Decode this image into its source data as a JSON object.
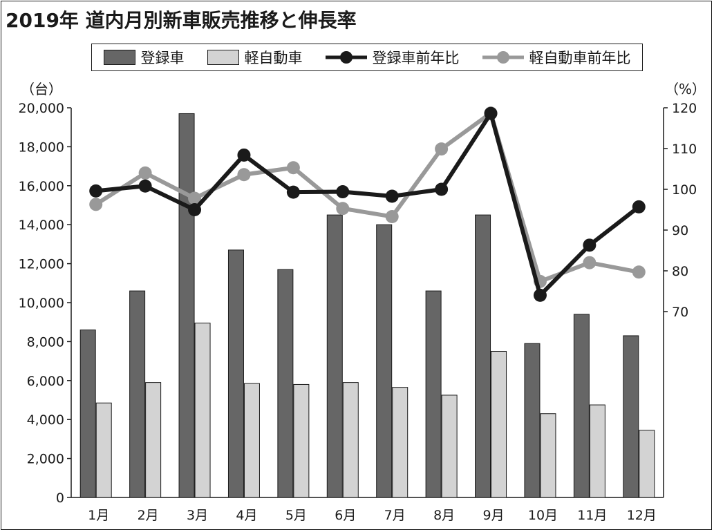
{
  "title": "2019年 道内月別新車販売推移と伸長率",
  "legend": {
    "registered": "登録車",
    "kei": "軽自動車",
    "registered_yoy": "登録車前年比",
    "kei_yoy": "軽自動車前年比"
  },
  "units": {
    "left": "（台）",
    "right": "（%）"
  },
  "colors": {
    "registered_bar": "#666666",
    "kei_bar": "#d3d3d3",
    "registered_line": "#1a1a1a",
    "kei_line": "#999999"
  },
  "chart_data": {
    "type": "bar",
    "categories": [
      "1月",
      "2月",
      "3月",
      "4月",
      "5月",
      "6月",
      "7月",
      "8月",
      "9月",
      "10月",
      "11月",
      "12月"
    ],
    "series": [
      {
        "name": "登録車",
        "type": "bar",
        "axis": "left",
        "values": [
          8600,
          10600,
          19700,
          12700,
          11700,
          14500,
          14000,
          10600,
          14500,
          7900,
          9400,
          8300
        ]
      },
      {
        "name": "軽自動車",
        "type": "bar",
        "axis": "left",
        "values": [
          4850,
          5900,
          8950,
          5850,
          5800,
          5900,
          5650,
          5250,
          7500,
          4300,
          4750,
          3450
        ]
      },
      {
        "name": "登録車前年比",
        "type": "line",
        "axis": "right",
        "values": [
          99.6,
          100.8,
          95.0,
          108.4,
          99.3,
          99.4,
          98.3,
          100.0,
          118.6,
          74.0,
          86.3,
          95.7
        ]
      },
      {
        "name": "軽自動車前年比",
        "type": "line",
        "axis": "right",
        "values": [
          96.3,
          104.0,
          97.8,
          103.6,
          105.3,
          95.3,
          93.3,
          109.9,
          118.7,
          77.4,
          82.0,
          79.7
        ]
      }
    ],
    "left_axis": {
      "min": 0,
      "max": 20000,
      "step": 2000,
      "tick_labels": [
        "0",
        "2,000",
        "4,000",
        "6,000",
        "8,000",
        "10,000",
        "12,000",
        "14,000",
        "16,000",
        "18,000",
        "20,000"
      ]
    },
    "right_axis": {
      "min": 70,
      "max": 120,
      "step": 10,
      "tick_labels": [
        "70",
        "80",
        "90",
        "100",
        "110",
        "120"
      ]
    },
    "grid": false,
    "legend_position": "top"
  }
}
